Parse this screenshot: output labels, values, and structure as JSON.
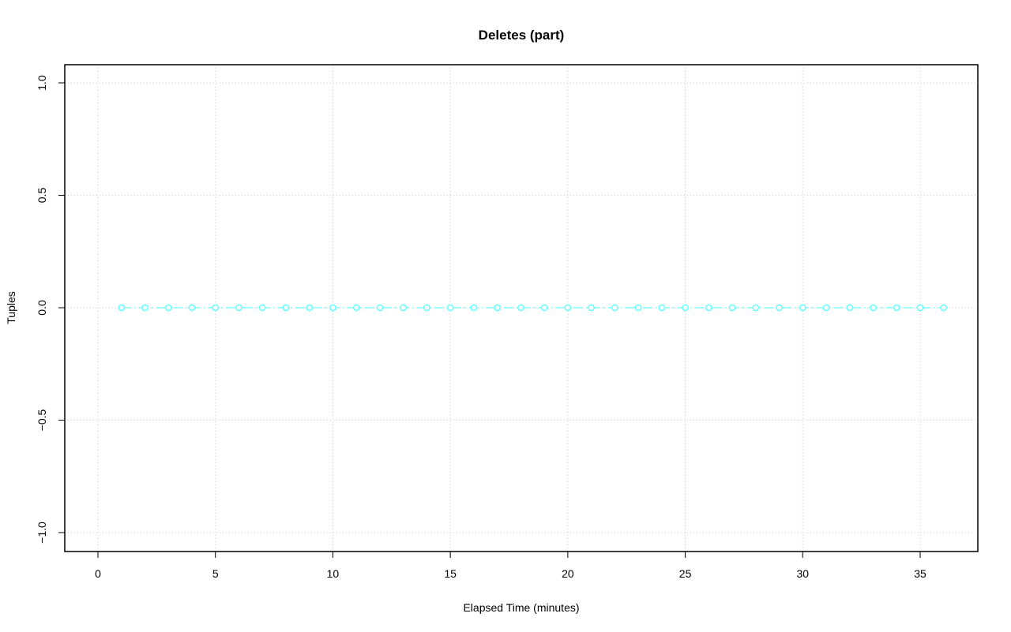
{
  "chart_data": {
    "type": "line",
    "title": "Deletes (part)",
    "xlabel": "Elapsed Time (minutes)",
    "ylabel": "Tuples",
    "xlim": [
      -1.4,
      37.9
    ],
    "ylim": [
      -1.08,
      1.08
    ],
    "x_ticks": [
      0,
      5,
      10,
      15,
      20,
      25,
      30,
      35
    ],
    "y_ticks": [
      -1.0,
      -0.5,
      0.0,
      0.5,
      1.0
    ],
    "x_tick_labels": [
      "0",
      "5",
      "10",
      "15",
      "20",
      "25",
      "30",
      "35"
    ],
    "y_tick_labels": [
      "−1.0",
      "−0.5",
      "0.0",
      "0.5",
      "1.0"
    ],
    "grid": true,
    "series": [
      {
        "color": "#66ffff",
        "line_style": "dashed",
        "marker": "open-circle",
        "x": [
          1,
          2,
          3,
          4,
          5,
          6,
          7,
          8,
          9,
          10,
          11,
          12,
          13,
          14,
          15,
          16,
          17,
          18,
          19,
          20,
          21,
          22,
          23,
          24,
          25,
          26,
          27,
          28,
          29,
          30,
          31,
          32,
          33,
          34,
          35,
          36
        ],
        "y": [
          0,
          0,
          0,
          0,
          0,
          0,
          0,
          0,
          0,
          0,
          0,
          0,
          0,
          0,
          0,
          0,
          0,
          0,
          0,
          0,
          0,
          0,
          0,
          0,
          0,
          0,
          0,
          0,
          0,
          0,
          0,
          0,
          0,
          0,
          0,
          0
        ]
      }
    ]
  }
}
